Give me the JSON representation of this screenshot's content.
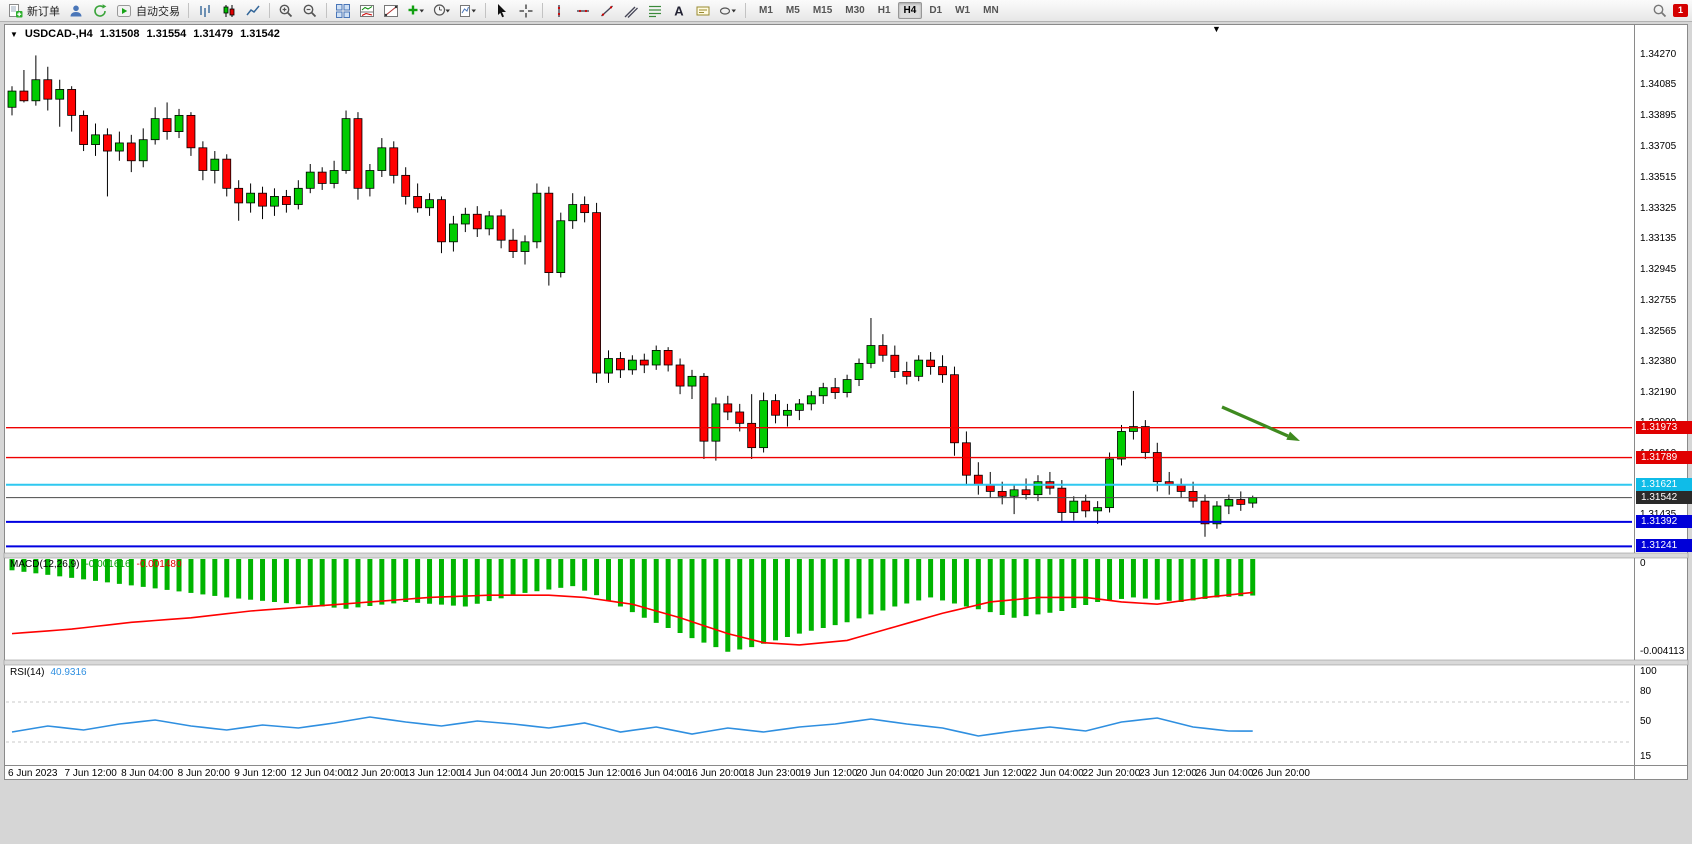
{
  "toolbar": {
    "new_order_label": "新订单",
    "autotrade_label": "自动交易",
    "timeframes": [
      "M1",
      "M5",
      "M15",
      "M30",
      "H1",
      "H4",
      "D1",
      "W1",
      "MN"
    ],
    "active_timeframe": "H4",
    "notification_count": "1"
  },
  "chart": {
    "symbol_label": "USDCAD-,H4",
    "ohlc": {
      "open": "1.31508",
      "high": "1.31554",
      "low": "1.31479",
      "close": "1.31542"
    },
    "colors": {
      "up": "#00cc00",
      "down": "#ff0000",
      "outline": "#000000",
      "macd_hist": "#00b400",
      "macd_signal": "#ff0000",
      "rsi_line": "#2f8fe0",
      "arrow": "#3e8a1f",
      "level_dash": "#c8c8c8"
    },
    "price_axis": {
      "ticks": [
        "1.34270",
        "1.34085",
        "1.33895",
        "1.33705",
        "1.33515",
        "1.33325",
        "1.33135",
        "1.32945",
        "1.32755",
        "1.32565",
        "1.32380",
        "1.32190",
        "1.32000",
        "1.31810",
        "1.31620",
        "1.31435",
        "1.31245"
      ]
    },
    "levels": [
      {
        "label": "1.31973",
        "price": 1.31973,
        "color": "#ee0000",
        "badge": "#e00000",
        "width": 1.4
      },
      {
        "label": "1.31789",
        "price": 1.31789,
        "color": "#ee0000",
        "badge": "#e00000",
        "width": 1.4
      },
      {
        "label": "1.31621",
        "price": 1.31621,
        "color": "#2fc8f0",
        "badge": "#0fbce8",
        "width": 2
      },
      {
        "label": "1.31542",
        "price": 1.31542,
        "color": "#4a4a4a",
        "badge": "#2a2a2a",
        "width": 1
      },
      {
        "label": "1.31392",
        "price": 1.31392,
        "color": "#0000e0",
        "badge": "#0000d8",
        "width": 2
      },
      {
        "label": "1.31241",
        "price": 1.31241,
        "color": "#0000e0",
        "badge": "#0000d8",
        "width": 2
      }
    ],
    "time_axis": [
      "6 Jun 2023",
      "7 Jun 12:00",
      "8 Jun 04:00",
      "8 Jun 20:00",
      "9 Jun 12:00",
      "12 Jun 04:00",
      "12 Jun 20:00",
      "13 Jun 12:00",
      "14 Jun 04:00",
      "14 Jun 20:00",
      "15 Jun 12:00",
      "16 Jun 04:00",
      "16 Jun 20:00",
      "18 Jun 23:00",
      "19 Jun 12:00",
      "20 Jun 04:00",
      "20 Jun 20:00",
      "21 Jun 12:00",
      "22 Jun 04:00",
      "22 Jun 20:00",
      "23 Jun 12:00",
      "26 Jun 04:00",
      "26 Jun 20:00"
    ]
  },
  "indicators": {
    "macd": {
      "name": "MACD(12,26,9)",
      "value_main": "-0.001616",
      "value_signal": "-0.001480",
      "scale_max": "0",
      "scale_min": "-0.004113"
    },
    "rsi": {
      "name": "RSI(14)",
      "value": "40.9316",
      "scale_labels": [
        [
          "100",
          100
        ],
        [
          "80",
          80
        ],
        [
          "50",
          50
        ],
        [
          "15",
          15
        ]
      ],
      "levels": [
        70,
        30
      ]
    }
  },
  "chart_data": {
    "type": "candlestick",
    "symbol": "USDCAD",
    "timeframe": "H4",
    "price_range": [
      1.312,
      1.3447
    ],
    "candles": [
      [
        1.3395,
        1.3408,
        1.339,
        1.3405
      ],
      [
        1.3405,
        1.3418,
        1.3398,
        1.3399
      ],
      [
        1.3399,
        1.3427,
        1.3396,
        1.3412
      ],
      [
        1.3412,
        1.342,
        1.3393,
        1.34
      ],
      [
        1.34,
        1.3412,
        1.3383,
        1.3406
      ],
      [
        1.3406,
        1.3408,
        1.338,
        1.339
      ],
      [
        1.339,
        1.3393,
        1.3368,
        1.3372
      ],
      [
        1.3372,
        1.3385,
        1.3365,
        1.3378
      ],
      [
        1.3378,
        1.3382,
        1.334,
        1.3368
      ],
      [
        1.3368,
        1.338,
        1.3362,
        1.3373
      ],
      [
        1.3373,
        1.3378,
        1.3355,
        1.3362
      ],
      [
        1.3362,
        1.3382,
        1.3358,
        1.3375
      ],
      [
        1.3375,
        1.3395,
        1.3372,
        1.3388
      ],
      [
        1.3388,
        1.3398,
        1.3375,
        1.338
      ],
      [
        1.338,
        1.3394,
        1.3376,
        1.339
      ],
      [
        1.339,
        1.3392,
        1.3365,
        1.337
      ],
      [
        1.337,
        1.3374,
        1.335,
        1.3356
      ],
      [
        1.3356,
        1.3368,
        1.3348,
        1.3363
      ],
      [
        1.3363,
        1.3366,
        1.334,
        1.3345
      ],
      [
        1.3345,
        1.335,
        1.3325,
        1.3336
      ],
      [
        1.3336,
        1.3348,
        1.333,
        1.3342
      ],
      [
        1.3342,
        1.3346,
        1.3326,
        1.3334
      ],
      [
        1.3334,
        1.3345,
        1.3328,
        1.334
      ],
      [
        1.334,
        1.3344,
        1.333,
        1.3335
      ],
      [
        1.3335,
        1.335,
        1.3332,
        1.3345
      ],
      [
        1.3345,
        1.336,
        1.3342,
        1.3355
      ],
      [
        1.3355,
        1.3358,
        1.3344,
        1.3348
      ],
      [
        1.3348,
        1.3362,
        1.3345,
        1.3356
      ],
      [
        1.3356,
        1.3393,
        1.3354,
        1.3388
      ],
      [
        1.3388,
        1.3392,
        1.3338,
        1.3345
      ],
      [
        1.3345,
        1.336,
        1.334,
        1.3356
      ],
      [
        1.3356,
        1.3376,
        1.3352,
        1.337
      ],
      [
        1.337,
        1.3374,
        1.3348,
        1.3353
      ],
      [
        1.3353,
        1.3358,
        1.3335,
        1.334
      ],
      [
        1.334,
        1.3348,
        1.333,
        1.3333
      ],
      [
        1.3333,
        1.3342,
        1.3328,
        1.3338
      ],
      [
        1.3338,
        1.334,
        1.3305,
        1.3312
      ],
      [
        1.3312,
        1.3328,
        1.3306,
        1.3323
      ],
      [
        1.3323,
        1.3333,
        1.3318,
        1.3329
      ],
      [
        1.3329,
        1.3334,
        1.3315,
        1.332
      ],
      [
        1.332,
        1.3331,
        1.3316,
        1.3328
      ],
      [
        1.3328,
        1.3332,
        1.3308,
        1.3313
      ],
      [
        1.3313,
        1.332,
        1.3302,
        1.3306
      ],
      [
        1.3306,
        1.3316,
        1.3298,
        1.3312
      ],
      [
        1.3312,
        1.3348,
        1.3308,
        1.3342
      ],
      [
        1.3342,
        1.3346,
        1.3285,
        1.3293
      ],
      [
        1.3293,
        1.333,
        1.329,
        1.3325
      ],
      [
        1.3325,
        1.3342,
        1.332,
        1.3335
      ],
      [
        1.3335,
        1.334,
        1.3324,
        1.333
      ],
      [
        1.333,
        1.3336,
        1.3225,
        1.3231
      ],
      [
        1.3231,
        1.3245,
        1.3225,
        1.324
      ],
      [
        1.324,
        1.3244,
        1.3228,
        1.3233
      ],
      [
        1.3233,
        1.3242,
        1.323,
        1.3239
      ],
      [
        1.3239,
        1.3243,
        1.3231,
        1.3236
      ],
      [
        1.3236,
        1.3248,
        1.3233,
        1.3245
      ],
      [
        1.3245,
        1.3247,
        1.3232,
        1.3236
      ],
      [
        1.3236,
        1.324,
        1.3218,
        1.3223
      ],
      [
        1.3223,
        1.3233,
        1.3215,
        1.3229
      ],
      [
        1.3229,
        1.3231,
        1.3178,
        1.3189
      ],
      [
        1.3189,
        1.3216,
        1.3177,
        1.3212
      ],
      [
        1.3212,
        1.3217,
        1.3202,
        1.3207
      ],
      [
        1.3207,
        1.3212,
        1.3195,
        1.32
      ],
      [
        1.32,
        1.3218,
        1.3178,
        1.3185
      ],
      [
        1.3185,
        1.3219,
        1.3182,
        1.3214
      ],
      [
        1.3214,
        1.3218,
        1.32,
        1.3205
      ],
      [
        1.3205,
        1.3212,
        1.3198,
        1.3208
      ],
      [
        1.3208,
        1.3215,
        1.3202,
        1.3212
      ],
      [
        1.3212,
        1.322,
        1.3208,
        1.3217
      ],
      [
        1.3217,
        1.3225,
        1.3212,
        1.3222
      ],
      [
        1.3222,
        1.3228,
        1.3215,
        1.3219
      ],
      [
        1.3219,
        1.323,
        1.3216,
        1.3227
      ],
      [
        1.3227,
        1.324,
        1.3223,
        1.3237
      ],
      [
        1.3237,
        1.3265,
        1.3234,
        1.3248
      ],
      [
        1.3248,
        1.3255,
        1.3238,
        1.3242
      ],
      [
        1.3242,
        1.3248,
        1.3228,
        1.3232
      ],
      [
        1.3232,
        1.3238,
        1.3224,
        1.3229
      ],
      [
        1.3229,
        1.3242,
        1.3226,
        1.3239
      ],
      [
        1.3239,
        1.3244,
        1.323,
        1.3235
      ],
      [
        1.3235,
        1.3242,
        1.3225,
        1.323
      ],
      [
        1.323,
        1.3235,
        1.318,
        1.3188
      ],
      [
        1.3188,
        1.3195,
        1.3162,
        1.3168
      ],
      [
        1.3168,
        1.3176,
        1.3156,
        1.3162
      ],
      [
        1.3162,
        1.317,
        1.3154,
        1.3158
      ],
      [
        1.3158,
        1.3164,
        1.315,
        1.3155
      ],
      [
        1.3155,
        1.3162,
        1.3144,
        1.3159
      ],
      [
        1.3159,
        1.3166,
        1.3153,
        1.3156
      ],
      [
        1.3156,
        1.3168,
        1.3152,
        1.3164
      ],
      [
        1.3164,
        1.317,
        1.3156,
        1.316
      ],
      [
        1.316,
        1.3165,
        1.3139,
        1.3145
      ],
      [
        1.3145,
        1.3155,
        1.314,
        1.3152
      ],
      [
        1.3152,
        1.3156,
        1.3142,
        1.3146
      ],
      [
        1.3146,
        1.3152,
        1.3138,
        1.3148
      ],
      [
        1.3148,
        1.3182,
        1.3145,
        1.3178
      ],
      [
        1.3178,
        1.3199,
        1.3174,
        1.3195
      ],
      [
        1.3195,
        1.322,
        1.319,
        1.3198
      ],
      [
        1.3198,
        1.3202,
        1.3178,
        1.3182
      ],
      [
        1.3182,
        1.3188,
        1.3158,
        1.3164
      ],
      [
        1.3164,
        1.317,
        1.3156,
        1.3162
      ],
      [
        1.3162,
        1.3166,
        1.3154,
        1.3158
      ],
      [
        1.3158,
        1.3164,
        1.3148,
        1.3152
      ],
      [
        1.3152,
        1.3156,
        1.313,
        1.3138
      ],
      [
        1.3138,
        1.3152,
        1.3135,
        1.3149
      ],
      [
        1.3149,
        1.3156,
        1.3144,
        1.3153
      ],
      [
        1.3153,
        1.3158,
        1.3146,
        1.315
      ],
      [
        1.31508,
        1.31554,
        1.31479,
        1.31542
      ]
    ],
    "macd_histogram_keyframes": [
      [
        0,
        -0.0005
      ],
      [
        6,
        -0.0009
      ],
      [
        12,
        -0.0013
      ],
      [
        18,
        -0.0017
      ],
      [
        24,
        -0.002
      ],
      [
        28,
        -0.0022
      ],
      [
        33,
        -0.0019
      ],
      [
        38,
        -0.0021
      ],
      [
        43,
        -0.0015
      ],
      [
        47,
        -0.0012
      ],
      [
        49,
        -0.0016
      ],
      [
        53,
        -0.0026
      ],
      [
        57,
        -0.0035
      ],
      [
        60,
        -0.0041
      ],
      [
        62,
        -0.0039
      ],
      [
        66,
        -0.0033
      ],
      [
        70,
        -0.0028
      ],
      [
        74,
        -0.0021
      ],
      [
        77,
        -0.0017
      ],
      [
        80,
        -0.0021
      ],
      [
        84,
        -0.0026
      ],
      [
        88,
        -0.0023
      ],
      [
        91,
        -0.0019
      ],
      [
        94,
        -0.0017
      ],
      [
        98,
        -0.0019
      ],
      [
        101,
        -0.0017
      ],
      [
        104,
        -0.001616
      ]
    ],
    "macd_signal_keyframes": [
      [
        0,
        -0.0033
      ],
      [
        5,
        -0.0031
      ],
      [
        10,
        -0.0028
      ],
      [
        15,
        -0.0026
      ],
      [
        20,
        -0.0023
      ],
      [
        25,
        -0.0021
      ],
      [
        30,
        -0.0019
      ],
      [
        35,
        -0.0017
      ],
      [
        40,
        -0.0016
      ],
      [
        45,
        -0.0016
      ],
      [
        48,
        -0.0017
      ],
      [
        52,
        -0.002
      ],
      [
        56,
        -0.0026
      ],
      [
        60,
        -0.0033
      ],
      [
        63,
        -0.0037
      ],
      [
        66,
        -0.0038
      ],
      [
        70,
        -0.0036
      ],
      [
        74,
        -0.003
      ],
      [
        78,
        -0.0024
      ],
      [
        82,
        -0.0019
      ],
      [
        86,
        -0.0017
      ],
      [
        90,
        -0.0017
      ],
      [
        93,
        -0.0019
      ],
      [
        96,
        -0.002
      ],
      [
        100,
        -0.0017
      ],
      [
        104,
        -0.00148
      ]
    ],
    "rsi_keyframes": [
      [
        0,
        40
      ],
      [
        3,
        46
      ],
      [
        6,
        42
      ],
      [
        9,
        48
      ],
      [
        12,
        52
      ],
      [
        15,
        46
      ],
      [
        18,
        42
      ],
      [
        21,
        47
      ],
      [
        24,
        44
      ],
      [
        27,
        49
      ],
      [
        30,
        55
      ],
      [
        33,
        50
      ],
      [
        36,
        46
      ],
      [
        39,
        51
      ],
      [
        42,
        48
      ],
      [
        45,
        44
      ],
      [
        48,
        49
      ],
      [
        51,
        40
      ],
      [
        54,
        45
      ],
      [
        57,
        38
      ],
      [
        60,
        44
      ],
      [
        63,
        40
      ],
      [
        66,
        45
      ],
      [
        69,
        48
      ],
      [
        72,
        53
      ],
      [
        75,
        48
      ],
      [
        78,
        44
      ],
      [
        81,
        36
      ],
      [
        84,
        41
      ],
      [
        87,
        45
      ],
      [
        90,
        41
      ],
      [
        93,
        50
      ],
      [
        96,
        54
      ],
      [
        99,
        45
      ],
      [
        102,
        41
      ],
      [
        104,
        40.93
      ]
    ]
  }
}
